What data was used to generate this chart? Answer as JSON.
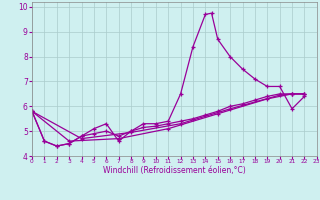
{
  "xlabel": "Windchill (Refroidissement éolien,°C)",
  "background_color": "#cff0f0",
  "grid_color": "#aacccc",
  "line_color": "#990099",
  "xlim": [
    0,
    23
  ],
  "ylim": [
    4.0,
    10.2
  ],
  "yticks": [
    4,
    5,
    6,
    7,
    8,
    9,
    10
  ],
  "xticks": [
    0,
    1,
    2,
    3,
    4,
    5,
    6,
    7,
    8,
    9,
    10,
    11,
    12,
    13,
    14,
    15,
    16,
    17,
    18,
    19,
    20,
    21,
    22,
    23
  ],
  "series1": [
    [
      0,
      5.8
    ],
    [
      1,
      4.6
    ],
    [
      2,
      4.4
    ],
    [
      3,
      4.5
    ],
    [
      4,
      4.8
    ],
    [
      5,
      5.1
    ],
    [
      6,
      5.3
    ],
    [
      7,
      4.6
    ],
    [
      8,
      5.0
    ],
    [
      9,
      5.3
    ],
    [
      10,
      5.3
    ],
    [
      11,
      5.4
    ],
    [
      12,
      6.5
    ],
    [
      13,
      8.4
    ],
    [
      14,
      9.7
    ],
    [
      14.5,
      9.75
    ],
    [
      15,
      8.7
    ],
    [
      16,
      8.0
    ],
    [
      17,
      7.5
    ],
    [
      18,
      7.1
    ],
    [
      19,
      6.8
    ],
    [
      20,
      6.8
    ],
    [
      21,
      5.9
    ],
    [
      22,
      6.4
    ]
  ],
  "series2": [
    [
      0,
      5.8
    ],
    [
      1,
      4.6
    ],
    [
      2,
      4.4
    ],
    [
      3,
      4.5
    ],
    [
      4,
      4.8
    ],
    [
      5,
      4.9
    ],
    [
      6,
      5.0
    ],
    [
      7,
      4.8
    ],
    [
      8,
      5.0
    ],
    [
      9,
      5.15
    ],
    [
      10,
      5.2
    ],
    [
      11,
      5.3
    ],
    [
      12,
      5.4
    ],
    [
      13,
      5.5
    ],
    [
      14,
      5.65
    ],
    [
      15,
      5.8
    ],
    [
      16,
      6.0
    ],
    [
      17,
      6.1
    ],
    [
      18,
      6.25
    ],
    [
      19,
      6.4
    ],
    [
      20,
      6.5
    ],
    [
      21,
      6.5
    ],
    [
      22,
      6.5
    ]
  ],
  "series3": [
    [
      0,
      5.8
    ],
    [
      3,
      4.6
    ],
    [
      7,
      4.7
    ],
    [
      11,
      5.1
    ],
    [
      15,
      5.7
    ],
    [
      19,
      6.3
    ],
    [
      21,
      6.5
    ],
    [
      22,
      6.5
    ]
  ],
  "series4": [
    [
      0,
      5.8
    ],
    [
      4,
      4.7
    ],
    [
      8,
      4.95
    ],
    [
      12,
      5.3
    ],
    [
      16,
      5.9
    ],
    [
      20,
      6.45
    ],
    [
      21,
      6.5
    ],
    [
      22,
      6.5
    ]
  ]
}
